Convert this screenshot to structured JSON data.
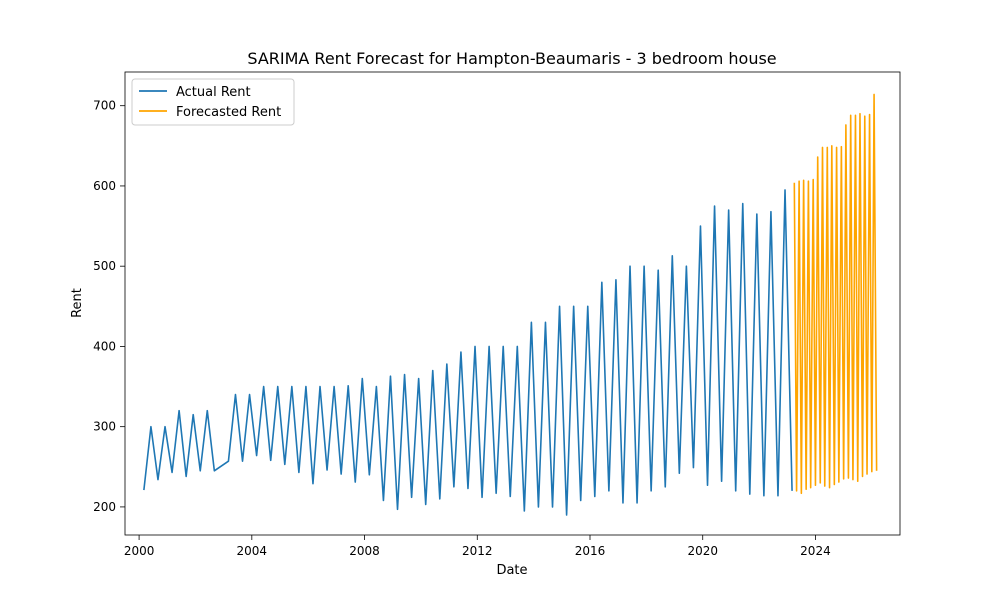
{
  "chart_data": {
    "type": "line",
    "title": "SARIMA Rent Forecast for Hampton-Beaumaris - 3 bedroom house",
    "xlabel": "Date",
    "ylabel": "Rent",
    "xlim": [
      1999.5,
      2027.0
    ],
    "ylim": [
      165,
      742
    ],
    "x_ticks": [
      2000,
      2004,
      2008,
      2012,
      2016,
      2020,
      2024
    ],
    "y_ticks": [
      200,
      300,
      400,
      500,
      600,
      700
    ],
    "grid": false,
    "legend_position": "top-left",
    "series": [
      {
        "name": "Actual Rent",
        "color": "#1f77b4",
        "points": [
          [
            2000.17,
            221
          ],
          [
            2000.42,
            300
          ],
          [
            2000.67,
            234
          ],
          [
            2000.92,
            300
          ],
          [
            2001.17,
            243
          ],
          [
            2001.42,
            320
          ],
          [
            2001.67,
            238
          ],
          [
            2001.92,
            315
          ],
          [
            2002.17,
            245
          ],
          [
            2002.42,
            320
          ],
          [
            2002.67,
            245
          ],
          [
            2003.17,
            257
          ],
          [
            2003.42,
            340
          ],
          [
            2003.67,
            257
          ],
          [
            2003.92,
            340
          ],
          [
            2004.17,
            264
          ],
          [
            2004.42,
            350
          ],
          [
            2004.67,
            258
          ],
          [
            2004.92,
            350
          ],
          [
            2005.17,
            253
          ],
          [
            2005.42,
            350
          ],
          [
            2005.67,
            243
          ],
          [
            2005.92,
            350
          ],
          [
            2006.17,
            229
          ],
          [
            2006.42,
            350
          ],
          [
            2006.67,
            246
          ],
          [
            2006.92,
            350
          ],
          [
            2007.17,
            241
          ],
          [
            2007.42,
            351
          ],
          [
            2007.67,
            231
          ],
          [
            2007.92,
            360
          ],
          [
            2008.17,
            240
          ],
          [
            2008.42,
            350
          ],
          [
            2008.67,
            208
          ],
          [
            2008.92,
            363
          ],
          [
            2009.17,
            197
          ],
          [
            2009.42,
            365
          ],
          [
            2009.67,
            212
          ],
          [
            2009.92,
            360
          ],
          [
            2010.17,
            203
          ],
          [
            2010.42,
            370
          ],
          [
            2010.67,
            210
          ],
          [
            2010.92,
            378
          ],
          [
            2011.17,
            225
          ],
          [
            2011.42,
            393
          ],
          [
            2011.67,
            223
          ],
          [
            2011.92,
            400
          ],
          [
            2012.17,
            212
          ],
          [
            2012.42,
            400
          ],
          [
            2012.67,
            217
          ],
          [
            2012.92,
            400
          ],
          [
            2013.17,
            213
          ],
          [
            2013.42,
            400
          ],
          [
            2013.67,
            195
          ],
          [
            2013.92,
            430
          ],
          [
            2014.17,
            200
          ],
          [
            2014.42,
            430
          ],
          [
            2014.67,
            200
          ],
          [
            2014.92,
            450
          ],
          [
            2015.17,
            190
          ],
          [
            2015.42,
            450
          ],
          [
            2015.67,
            208
          ],
          [
            2015.92,
            450
          ],
          [
            2016.17,
            213
          ],
          [
            2016.42,
            480
          ],
          [
            2016.67,
            220
          ],
          [
            2016.92,
            483
          ],
          [
            2017.17,
            205
          ],
          [
            2017.42,
            500
          ],
          [
            2017.67,
            205
          ],
          [
            2017.92,
            500
          ],
          [
            2018.17,
            220
          ],
          [
            2018.42,
            495
          ],
          [
            2018.67,
            225
          ],
          [
            2018.92,
            513
          ],
          [
            2019.17,
            242
          ],
          [
            2019.42,
            500
          ],
          [
            2019.67,
            249
          ],
          [
            2019.92,
            550
          ],
          [
            2020.17,
            227
          ],
          [
            2020.42,
            575
          ],
          [
            2020.67,
            232
          ],
          [
            2020.92,
            570
          ],
          [
            2021.17,
            220
          ],
          [
            2021.42,
            578
          ],
          [
            2021.67,
            216
          ],
          [
            2021.92,
            565
          ],
          [
            2022.17,
            214
          ],
          [
            2022.42,
            568
          ],
          [
            2022.67,
            214
          ],
          [
            2022.92,
            595
          ],
          [
            2023.17,
            220
          ]
        ]
      },
      {
        "name": "Forecasted Rent",
        "color": "#ffa500",
        "points": [
          [
            2023.25,
            604
          ],
          [
            2023.33,
            220
          ],
          [
            2023.42,
            606
          ],
          [
            2023.5,
            217
          ],
          [
            2023.58,
            607
          ],
          [
            2023.67,
            222
          ],
          [
            2023.75,
            606
          ],
          [
            2023.83,
            224
          ],
          [
            2023.92,
            608
          ],
          [
            2024.0,
            227
          ],
          [
            2024.08,
            636
          ],
          [
            2024.17,
            230
          ],
          [
            2024.25,
            648
          ],
          [
            2024.33,
            226
          ],
          [
            2024.42,
            648
          ],
          [
            2024.5,
            224
          ],
          [
            2024.58,
            650
          ],
          [
            2024.67,
            228
          ],
          [
            2024.75,
            648
          ],
          [
            2024.83,
            231
          ],
          [
            2024.92,
            649
          ],
          [
            2025.0,
            235
          ],
          [
            2025.08,
            676
          ],
          [
            2025.17,
            236
          ],
          [
            2025.25,
            688
          ],
          [
            2025.33,
            234
          ],
          [
            2025.42,
            688
          ],
          [
            2025.5,
            232
          ],
          [
            2025.58,
            690
          ],
          [
            2025.67,
            238
          ],
          [
            2025.75,
            687
          ],
          [
            2025.83,
            241
          ],
          [
            2025.92,
            689
          ],
          [
            2026.0,
            244
          ],
          [
            2026.08,
            714
          ],
          [
            2026.17,
            245
          ]
        ]
      }
    ]
  }
}
